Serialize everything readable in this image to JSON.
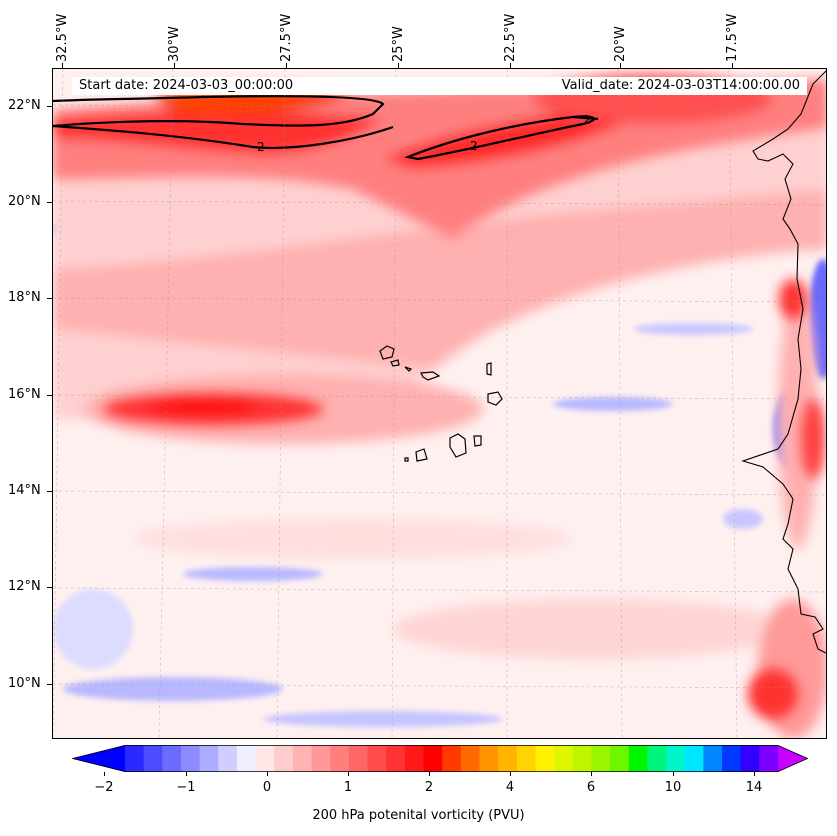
{
  "map": {
    "title_start": "Start date: 2024-03-03_00:00:00",
    "title_valid": "Valid_date: 2024-03-03T14:00:00.00",
    "lon_labels": [
      "32.5°W",
      "30°W",
      "27.5°W",
      "25°W",
      "22.5°W",
      "20°W",
      "17.5°W"
    ],
    "lat_labels": [
      "22°N",
      "20°N",
      "18°N",
      "16°N",
      "14°N",
      "12°N",
      "10°N"
    ],
    "contour_label": "2",
    "region": "Cape Verde Islands and West African coast",
    "lon_range": [
      -33,
      -15.5
    ],
    "lat_range": [
      8.9,
      22.8
    ]
  },
  "colorbar": {
    "label": "200 hPa potenital vorticity (PVU)",
    "ticks": [
      "−2",
      "−1",
      "0",
      "1",
      "2",
      "4",
      "6",
      "10",
      "14"
    ],
    "colors": [
      "#0000ff",
      "#2a2aff",
      "#4b4bff",
      "#6b6bff",
      "#8c8cff",
      "#adadff",
      "#cfcfff",
      "#efefff",
      "#ffe6e6",
      "#ffcccc",
      "#ffb3b3",
      "#ff9999",
      "#ff7f7f",
      "#ff6666",
      "#ff4d4d",
      "#ff3333",
      "#ff1a1a",
      "#ff0000",
      "#ff3a00",
      "#ff6a00",
      "#ff9400",
      "#ffb400",
      "#ffd400",
      "#fff200",
      "#e0f500",
      "#bff500",
      "#9cf500",
      "#6ef500",
      "#00f500",
      "#00f57a",
      "#00f5c8",
      "#00e5ff",
      "#0087ff",
      "#0038ff",
      "#3200ff",
      "#7b00ff",
      "#c800ff"
    ]
  }
}
